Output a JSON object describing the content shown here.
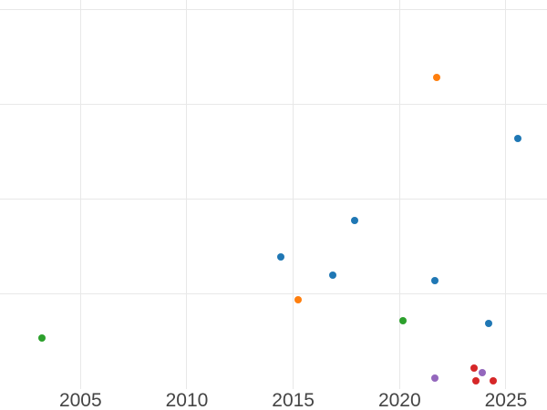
{
  "chart_data": {
    "type": "scatter",
    "title": "",
    "xlabel": "",
    "ylabel": "",
    "x_ticks": [
      2005,
      2010,
      2015,
      2020,
      2025
    ],
    "x_tick_labels": [
      "2005",
      "2010",
      "2015",
      "2020",
      "2025"
    ],
    "xlim": [
      2001.2,
      2026.9
    ],
    "ylim": [
      0,
      4.1
    ],
    "y_axis_labels_visible": false,
    "y_gridlines": [
      1,
      2,
      3,
      4
    ],
    "grid": true,
    "legend": false,
    "gridline_color": "#e8e8e8",
    "tick_label_color": "#444444",
    "background_color": "#ffffff",
    "marker_diameter_px": 8,
    "series": [
      {
        "name": "blue",
        "color": "#1f77b4",
        "points": [
          {
            "x": 2014.4,
            "y": 1.39
          },
          {
            "x": 2016.85,
            "y": 1.2
          },
          {
            "x": 2017.9,
            "y": 1.77
          },
          {
            "x": 2021.65,
            "y": 1.14
          },
          {
            "x": 2024.2,
            "y": 0.69
          },
          {
            "x": 2025.55,
            "y": 2.64
          }
        ]
      },
      {
        "name": "orange",
        "color": "#ff7f0e",
        "points": [
          {
            "x": 2015.25,
            "y": 0.94
          },
          {
            "x": 2021.75,
            "y": 3.28
          }
        ]
      },
      {
        "name": "green",
        "color": "#2ca02c",
        "points": [
          {
            "x": 2003.2,
            "y": 0.53
          },
          {
            "x": 2020.15,
            "y": 0.72
          }
        ]
      },
      {
        "name": "red",
        "color": "#d62728",
        "points": [
          {
            "x": 2023.5,
            "y": 0.22
          },
          {
            "x": 2023.6,
            "y": 0.085
          },
          {
            "x": 2024.4,
            "y": 0.08
          }
        ]
      },
      {
        "name": "purple",
        "color": "#9467bd",
        "points": [
          {
            "x": 2021.65,
            "y": 0.11
          },
          {
            "x": 2023.9,
            "y": 0.17
          }
        ]
      }
    ]
  }
}
